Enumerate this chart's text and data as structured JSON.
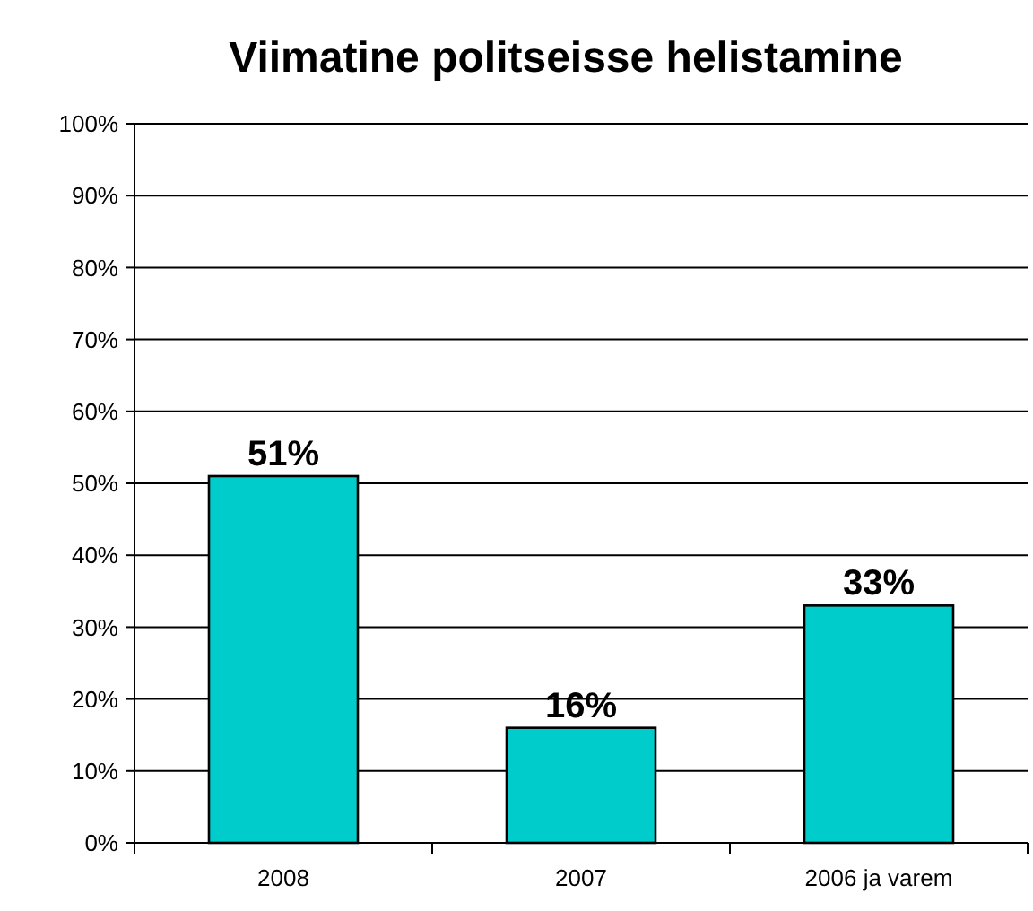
{
  "chart_data": {
    "type": "bar",
    "title": "Viimatine politseisse helistamine",
    "categories": [
      "2008",
      "2007",
      "2006 ja varem"
    ],
    "values": [
      51,
      16,
      33
    ],
    "color": "#00cccc",
    "value_labels": [
      "51%",
      "16%",
      "33%"
    ],
    "ylim": [
      0,
      100
    ],
    "yticks": [
      {
        "value": 0,
        "label": "0%"
      },
      {
        "value": 10,
        "label": "10%"
      },
      {
        "value": 20,
        "label": "20%"
      },
      {
        "value": 30,
        "label": "30%"
      },
      {
        "value": 40,
        "label": "40%"
      },
      {
        "value": 50,
        "label": "50%"
      },
      {
        "value": 60,
        "label": "60%"
      },
      {
        "value": 70,
        "label": "70%"
      },
      {
        "value": 80,
        "label": "80%"
      },
      {
        "value": 90,
        "label": "90%"
      },
      {
        "value": 100,
        "label": "100%"
      }
    ],
    "grid": "y"
  }
}
